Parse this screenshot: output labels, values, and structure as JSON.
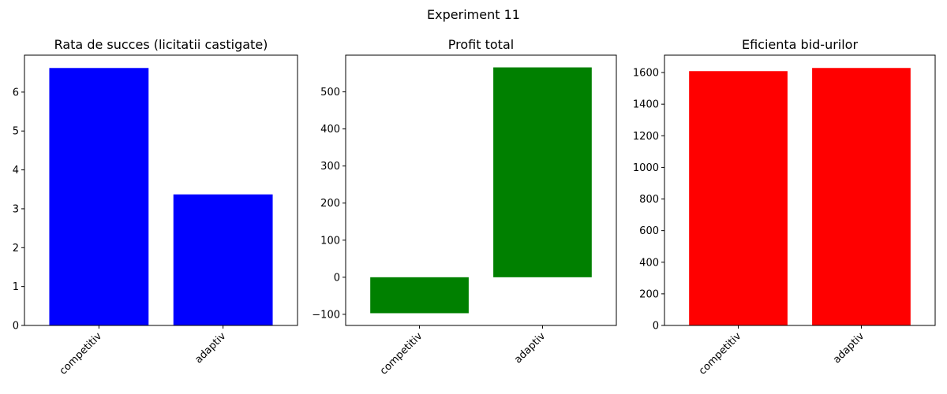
{
  "figure": {
    "title": "Experiment 11"
  },
  "chart_data": [
    {
      "type": "bar",
      "title": "Rata de succes (licitatii castigate)",
      "categories": [
        "competitiv",
        "adaptiv"
      ],
      "values": [
        6.62,
        3.37
      ],
      "color": "#0000ff",
      "ylim": [
        0,
        6.95
      ],
      "yticks": [
        0,
        1,
        2,
        3,
        4,
        5,
        6
      ],
      "ytick_labels": [
        "0",
        "1",
        "2",
        "3",
        "4",
        "5",
        "6"
      ],
      "xlabel": "",
      "ylabel": "",
      "grid": false
    },
    {
      "type": "bar",
      "title": "Profit total",
      "categories": [
        "competitiv",
        "adaptiv"
      ],
      "values": [
        -97,
        566
      ],
      "color": "#008000",
      "ylim": [
        -130,
        599
      ],
      "yticks": [
        -100,
        0,
        100,
        200,
        300,
        400,
        500
      ],
      "ytick_labels": [
        "−100",
        "0",
        "100",
        "200",
        "300",
        "400",
        "500"
      ],
      "xlabel": "",
      "ylabel": "",
      "grid": false
    },
    {
      "type": "bar",
      "title": "Eficienta bid-urilor",
      "categories": [
        "competitiv",
        "adaptiv"
      ],
      "values": [
        1609,
        1629
      ],
      "color": "#ff0000",
      "ylim": [
        0,
        1710
      ],
      "yticks": [
        0,
        200,
        400,
        600,
        800,
        1000,
        1200,
        1400,
        1600
      ],
      "ytick_labels": [
        "0",
        "200",
        "400",
        "600",
        "800",
        "1000",
        "1200",
        "1400",
        "1600"
      ],
      "xlabel": "",
      "ylabel": "",
      "grid": false
    }
  ]
}
